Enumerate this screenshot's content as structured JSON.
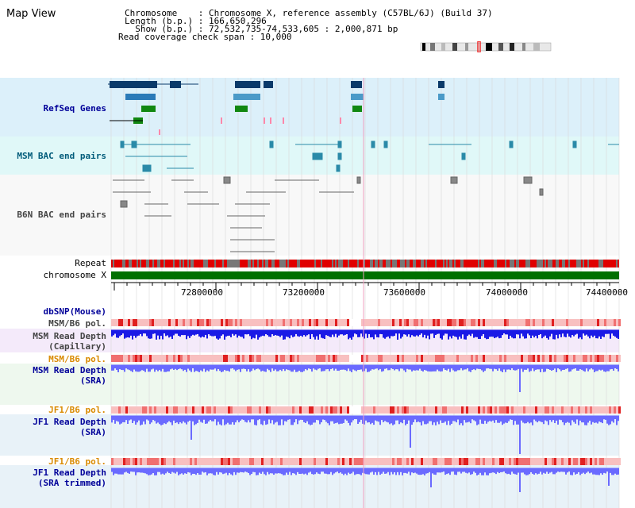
{
  "header": {
    "title": "Map View",
    "lines": [
      "Chromosome    : Chromosome X, reference assembly (C57BL/6J) (Build 37)",
      "Length (b.p.) : 166,650,296",
      "  Show (b.p.) : 72,532,735-74,533,605 : 2,000,871 bp",
      "Read coverage check span : 10,000"
    ]
  },
  "tracks": {
    "refseq": "RefSeq Genes",
    "msm_bac": "MSM BAC end pairs",
    "b6n_bac": "B6N BAC end pairs",
    "repeat": "Repeat",
    "chromosome": "chromosome X",
    "dbsnp": "dbSNP(Mouse)",
    "msm_b6_pol_1": "MSM/B6 pol.",
    "msm_depth_cap_1": "MSM Read Depth",
    "msm_depth_cap_2": "(Capillary)",
    "msm_b6_pol_2": "MSM/B6 pol.",
    "msm_depth_sra_1": "MSM Read Depth",
    "msm_depth_sra_2": "(SRA)",
    "jf1_b6_pol_1": "JF1/B6 pol.",
    "jf1_depth_sra_1": "JF1 Read Depth",
    "jf1_depth_sra_2": "(SRA)",
    "jf1_b6_pol_2": "JF1/B6 pol.",
    "jf1_depth_trim_1": "JF1 Read Depth",
    "jf1_depth_trim_2": "(SRA trimmed)"
  },
  "ruler": {
    "ticks": [
      "72800000",
      "73200000",
      "73600000",
      "74000000",
      "74400000"
    ]
  },
  "colors": {
    "refseq_bg": "#dcf0fa",
    "msm_bac_bg": "#e0f8f8",
    "lower_bg": "#e8f8f8",
    "repeat": "#e00000",
    "chromosome": "#007000",
    "pol": "#f4b0b0",
    "depth": "#6a6aff",
    "depth_dark": "#1a1ae6"
  }
}
